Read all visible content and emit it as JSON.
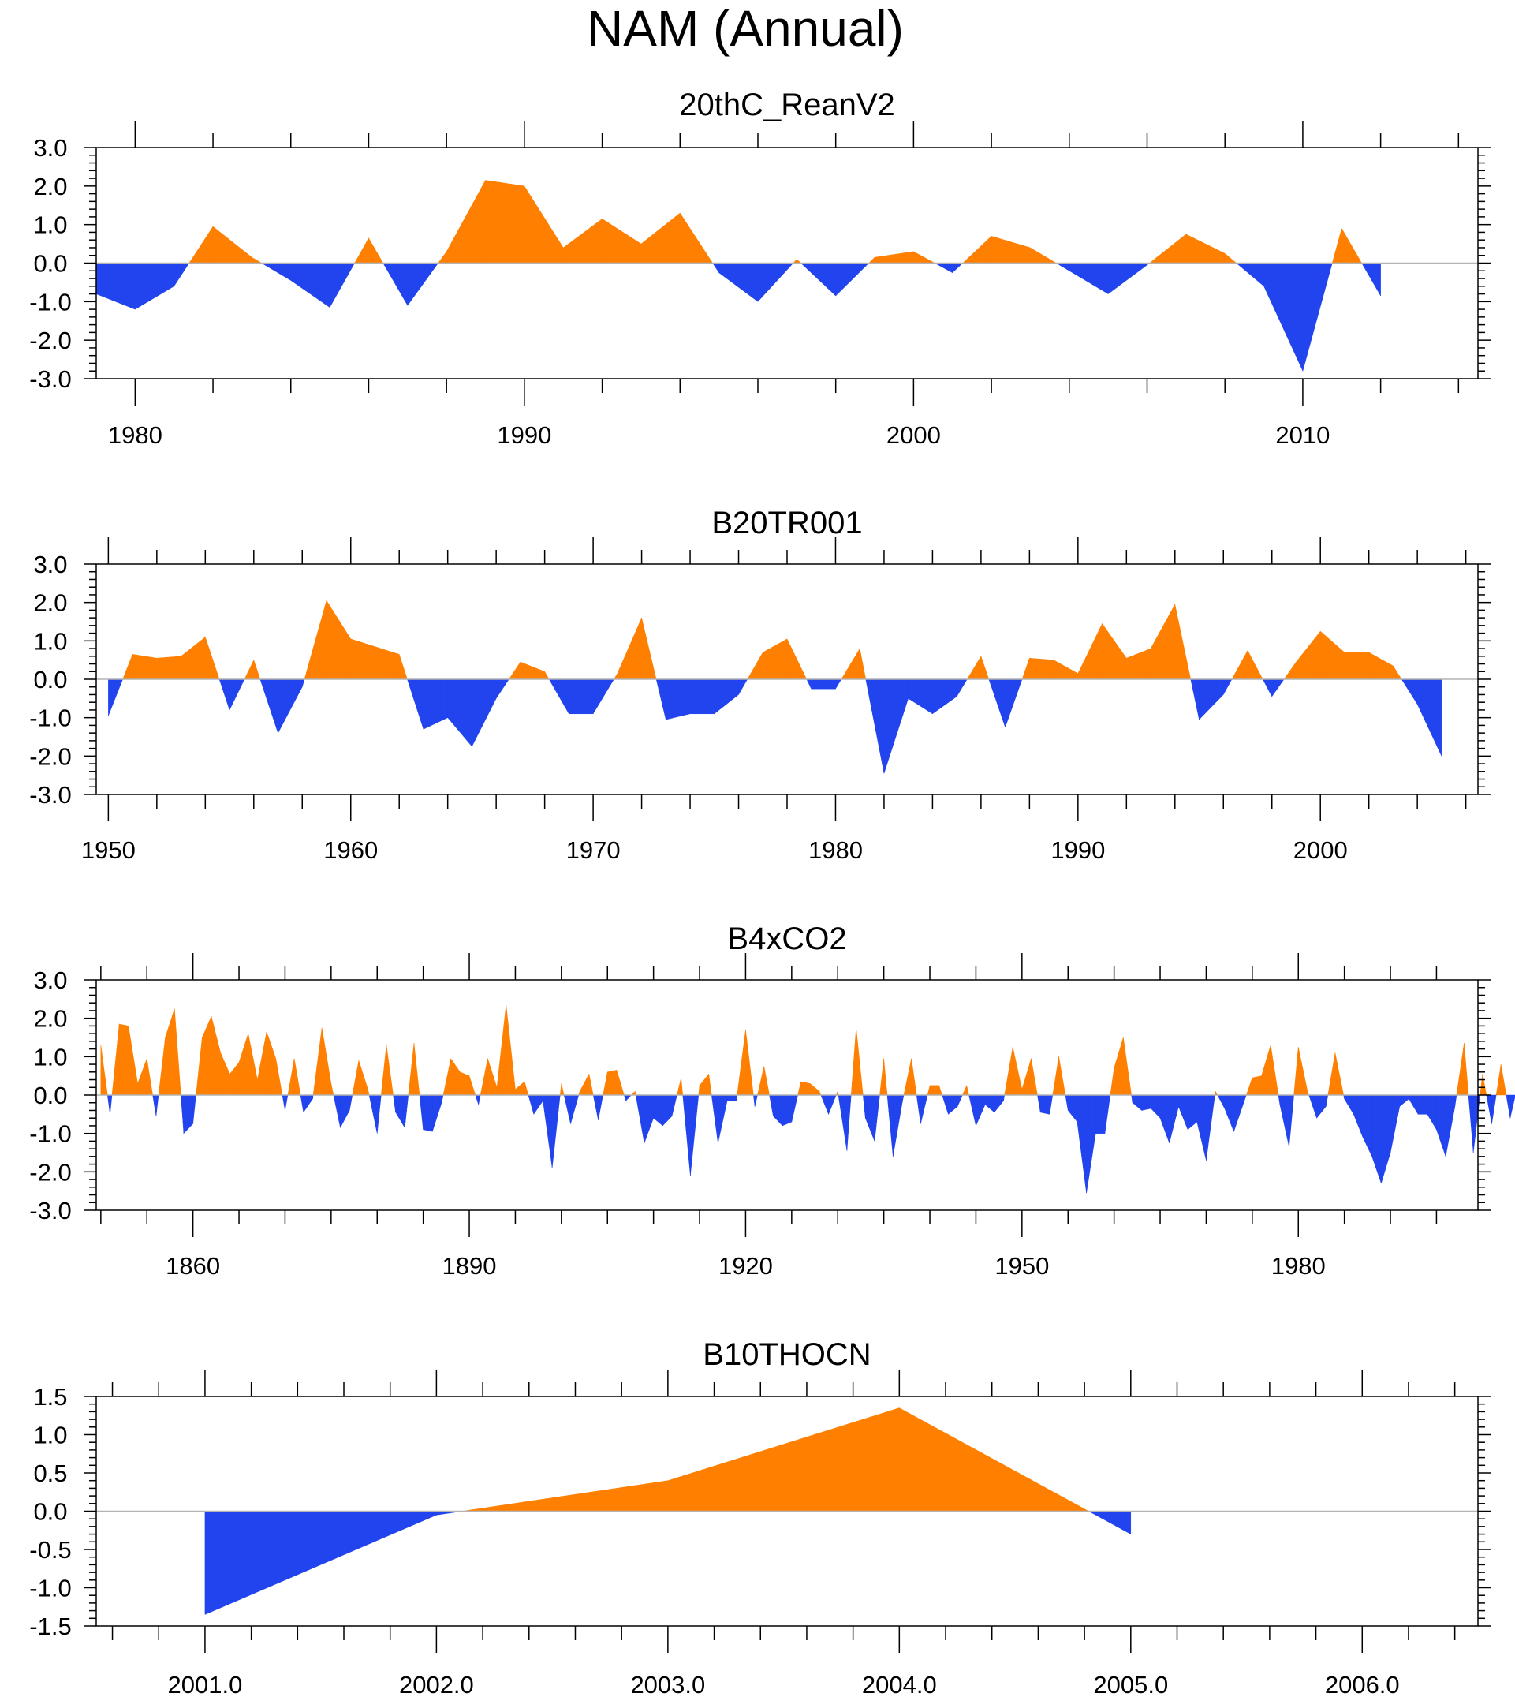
{
  "figure_title": "NAM (Annual)",
  "colors": {
    "positive": "#ff7f00",
    "negative": "#2244ee",
    "zero_line": "#b4b4b4"
  },
  "chart_data": [
    {
      "type": "area",
      "title": "20thC_ReanV2",
      "x": [
        1979,
        1980,
        1981,
        1982,
        1983,
        1984,
        1985,
        1986,
        1987,
        1988,
        1989,
        1990,
        1991,
        1992,
        1993,
        1994,
        1995,
        1996,
        1997,
        1998,
        1999,
        2000,
        2001,
        2002,
        2003,
        2004,
        2005,
        2006,
        2007,
        2008,
        2009,
        2010,
        2011,
        2012
      ],
      "values": [
        -0.8,
        -1.2,
        -0.6,
        0.95,
        0.15,
        -0.45,
        -1.15,
        0.65,
        -1.1,
        0.3,
        2.15,
        2.0,
        0.4,
        1.15,
        0.5,
        1.3,
        -0.25,
        -1.0,
        0.1,
        -0.85,
        0.15,
        0.3,
        -0.25,
        0.7,
        0.4,
        -0.2,
        -0.8,
        -0.05,
        0.75,
        0.25,
        -0.6,
        -2.8,
        0.9,
        -0.85
      ],
      "xlim": [
        1979,
        2014.5
      ],
      "ylim": [
        -3.0,
        3.0
      ],
      "yticks": [
        "3.0",
        "2.0",
        "1.0",
        "0.0",
        "-1.0",
        "-2.0",
        "-3.0"
      ],
      "ytick_values": [
        3,
        2,
        1,
        0,
        -1,
        -2,
        -3
      ],
      "xticks": [
        "1980",
        "1990",
        "2000",
        "2010"
      ],
      "xtick_values": [
        1980,
        1990,
        2000,
        2010
      ]
    },
    {
      "type": "area",
      "title": "B20TR001",
      "x": [
        1950,
        1951,
        1952,
        1953,
        1954,
        1955,
        1956,
        1957,
        1958,
        1959,
        1960,
        1961,
        1962,
        1963,
        1964,
        1965,
        1966,
        1967,
        1968,
        1969,
        1970,
        1971,
        1972,
        1973,
        1974,
        1975,
        1976,
        1977,
        1978,
        1979,
        1980,
        1981,
        1982,
        1983,
        1984,
        1985,
        1986,
        1987,
        1988,
        1989,
        1990,
        1991,
        1992,
        1993,
        1994,
        1995,
        1996,
        1997,
        1998,
        1999,
        2000,
        2001,
        2002,
        2003,
        2004,
        2005
      ],
      "values": [
        -0.95,
        0.65,
        0.55,
        0.6,
        1.1,
        -0.8,
        0.5,
        -1.4,
        -0.2,
        2.05,
        1.05,
        0.85,
        0.65,
        -1.3,
        -1.0,
        -1.75,
        -0.5,
        0.45,
        0.2,
        -0.9,
        -0.9,
        0.15,
        1.6,
        -1.05,
        -0.9,
        -0.9,
        -0.4,
        0.7,
        1.05,
        -0.25,
        -0.25,
        0.8,
        -2.45,
        -0.5,
        -0.9,
        -0.45,
        0.6,
        -1.25,
        0.55,
        0.5,
        0.15,
        1.45,
        0.55,
        0.8,
        1.95,
        -1.05,
        -0.4,
        0.75,
        -0.45,
        0.45,
        1.25,
        0.7,
        0.7,
        0.35,
        -0.65,
        -2.0
      ],
      "xlim": [
        1949.5,
        2006.5
      ],
      "ylim": [
        -3.0,
        3.0
      ],
      "yticks": [
        "3.0",
        "2.0",
        "1.0",
        "0.0",
        "-1.0",
        "-2.0",
        "-3.0"
      ],
      "ytick_values": [
        3,
        2,
        1,
        0,
        -1,
        -2,
        -3
      ],
      "xticks": [
        "1950",
        "1960",
        "1970",
        "1980",
        "1990",
        "2000"
      ],
      "xtick_values": [
        1950,
        1960,
        1970,
        1980,
        1990,
        2000
      ]
    },
    {
      "type": "area",
      "title": "B4xCO2",
      "x_start": 1850,
      "values": [
        1.3,
        -0.5,
        1.85,
        1.8,
        0.3,
        0.95,
        -0.55,
        1.5,
        2.25,
        -1.0,
        -0.75,
        1.5,
        2.05,
        1.1,
        0.55,
        0.85,
        1.6,
        0.4,
        1.65,
        0.95,
        -0.4,
        0.95,
        -0.45,
        -0.1,
        1.75,
        0.3,
        -0.85,
        -0.4,
        0.9,
        0.15,
        -1.0,
        1.3,
        -0.45,
        -0.85,
        1.35,
        -0.9,
        -0.95,
        -0.2,
        0.95,
        0.6,
        0.5,
        -0.25,
        0.95,
        0.2,
        2.35,
        0.15,
        0.35,
        -0.5,
        -0.15,
        -1.9,
        0.3,
        -0.75,
        0.1,
        0.55,
        -0.65,
        0.6,
        0.65,
        -0.15,
        0.1,
        -1.25,
        -0.6,
        -0.8,
        -0.55,
        0.45,
        -2.1,
        0.25,
        0.55,
        -1.25,
        -0.15,
        -0.15,
        1.7,
        -0.3,
        0.75,
        -0.55,
        -0.8,
        -0.7,
        0.35,
        0.3,
        0.1,
        -0.5,
        0.1,
        -1.45,
        1.75,
        -0.6,
        -1.2,
        0.95,
        -1.6,
        -0.2,
        0.95,
        -0.75,
        0.25,
        0.25,
        -0.5,
        -0.3,
        0.25,
        -0.8,
        -0.25,
        -0.45,
        -0.15,
        1.25,
        0.15,
        0.95,
        -0.45,
        -0.5,
        1.0,
        -0.4,
        -0.7,
        -2.55,
        -1.0,
        -1.0,
        0.7,
        1.5,
        -0.2,
        -0.4,
        -0.35,
        -0.6,
        -1.25,
        -0.3,
        -0.9,
        -0.7,
        -1.7,
        0.1,
        -0.35,
        -0.95,
        -0.25,
        0.45,
        0.5,
        1.3,
        -0.25,
        -1.35,
        1.25,
        0.1,
        -0.6,
        -0.3,
        1.1,
        -0.1,
        -0.5,
        -1.1,
        -1.6,
        -2.3,
        -1.5,
        -0.3,
        -0.1,
        -0.5,
        -0.5,
        -0.9,
        -1.6,
        -0.3,
        1.35,
        -1.5,
        0.55,
        -0.75,
        0.8,
        -0.6,
        0.45
      ],
      "xlim": [
        1849.5,
        1999.5
      ],
      "ylim": [
        -3.0,
        3.0
      ],
      "yticks": [
        "3.0",
        "2.0",
        "1.0",
        "0.0",
        "-1.0",
        "-2.0",
        "-3.0"
      ],
      "ytick_values": [
        3,
        2,
        1,
        0,
        -1,
        -2,
        -3
      ],
      "xticks": [
        "1860",
        "1890",
        "1920",
        "1950",
        "1980"
      ],
      "xtick_values": [
        1860,
        1890,
        1920,
        1950,
        1980
      ]
    },
    {
      "type": "area",
      "title": "B10THOCN",
      "x": [
        2001,
        2002,
        2003,
        2004,
        2005
      ],
      "values": [
        -1.35,
        -0.05,
        0.4,
        1.35,
        -0.3
      ],
      "xlim": [
        2000.53,
        2006.5
      ],
      "ylim": [
        -1.5,
        1.5
      ],
      "yticks": [
        "1.5",
        "1.0",
        "0.5",
        "0.0",
        "-0.5",
        "-1.0",
        "-1.5"
      ],
      "ytick_values": [
        1.5,
        1.0,
        0.5,
        0.0,
        -0.5,
        -1.0,
        -1.5
      ],
      "xticks": [
        "2001.0",
        "2002.0",
        "2003.0",
        "2004.0",
        "2005.0",
        "2006.0"
      ],
      "xtick_values": [
        2001,
        2002,
        2003,
        2004,
        2005,
        2006
      ]
    }
  ]
}
